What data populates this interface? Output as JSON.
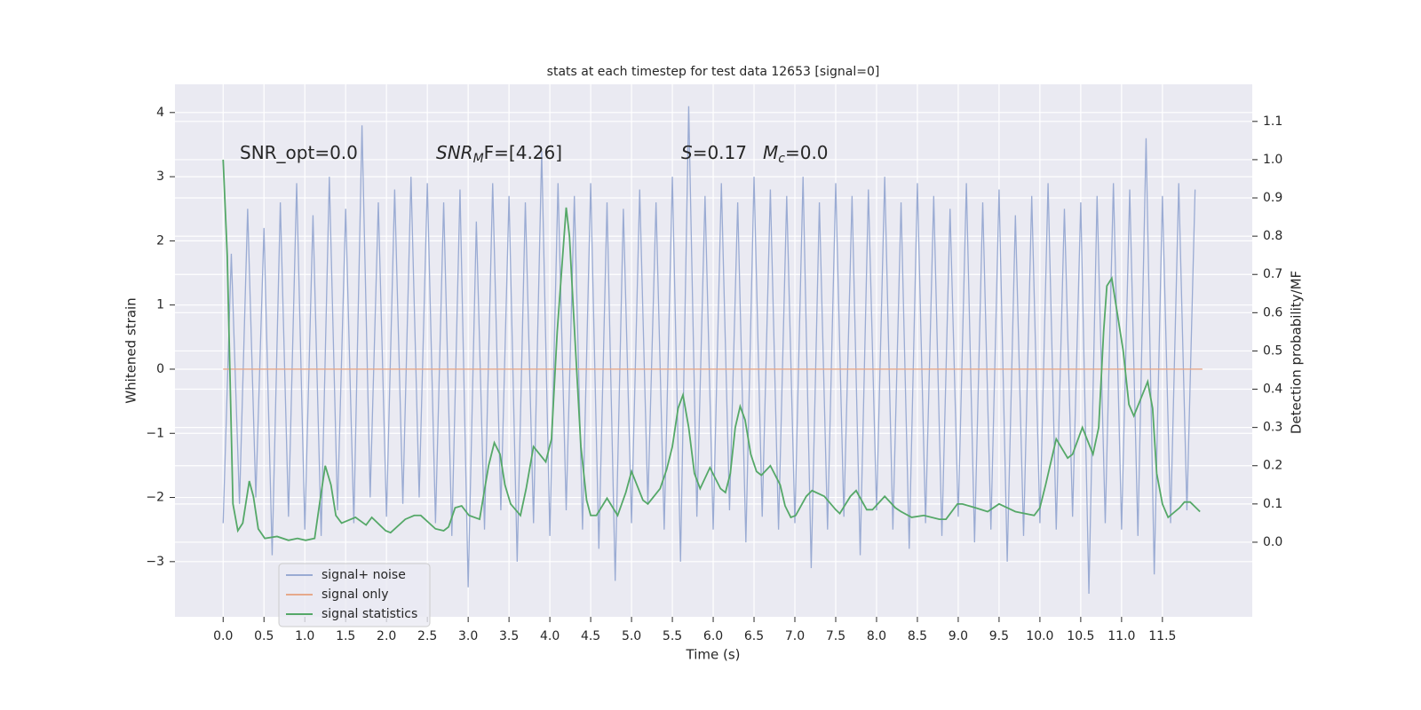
{
  "chart_data": {
    "type": "line",
    "title": "stats at each timestep for test data 12653 [signal=0]",
    "xlabel": "Time (s)",
    "ylabel": "Whitened strain",
    "y2label": "Detection probability/MF",
    "xlim": [
      -0.59,
      12.6
    ],
    "ylim": [
      -3.86,
      4.44
    ],
    "y2lim": [
      -0.195,
      1.197
    ],
    "xticks": [
      {
        "value": 0,
        "label": "0.0"
      },
      0.5,
      {
        "value": 1,
        "label": "1.0"
      },
      1.5,
      {
        "value": 2,
        "label": "2.0"
      },
      2.5,
      {
        "value": 3,
        "label": "3.0"
      },
      3.5,
      {
        "value": 4,
        "label": "4.0"
      },
      4.5,
      {
        "value": 5,
        "label": "5.0"
      },
      5.5,
      {
        "value": 6,
        "label": "6.0"
      },
      6.5,
      {
        "value": 7,
        "label": "7.0"
      },
      7.5,
      {
        "value": 8,
        "label": "8.0"
      },
      8.5,
      {
        "value": 9,
        "label": "9.0"
      },
      9.5,
      {
        "value": 10,
        "label": "10.0"
      },
      10.5,
      {
        "value": 11,
        "label": "11.0"
      },
      11.5
    ],
    "yticks": [
      {
        "value": -3,
        "label": "−3"
      },
      {
        "value": -2,
        "label": "−2"
      },
      {
        "value": -1,
        "label": "−1"
      },
      0,
      1,
      2,
      3,
      4
    ],
    "y2ticks": [
      {
        "value": 0,
        "label": "0.0"
      },
      0.1,
      0.2,
      0.3,
      0.4,
      0.5,
      0.6,
      0.7,
      0.8,
      0.9,
      {
        "value": 1,
        "label": "1.0"
      },
      1.1
    ],
    "grid": true,
    "legend": "lower left",
    "annotations": [
      [
        {
          "text": "SNR_opt=0.0",
          "style": "normal"
        }
      ],
      [
        {
          "text": "SNR",
          "style": "italic"
        },
        {
          "text": "M",
          "style": "italic-sub"
        },
        {
          "text": "F=[4.26]",
          "style": "normal"
        }
      ],
      [
        {
          "text": "S",
          "style": "italic"
        },
        {
          "text": "=0.17",
          "style": "normal"
        }
      ],
      [
        {
          "text": "M",
          "style": "italic"
        },
        {
          "text": "c",
          "style": "italic-sub"
        },
        {
          "text": "=0.0",
          "style": "normal"
        }
      ]
    ],
    "series": [
      {
        "name": "signal+ noise",
        "color": "#9aabd3",
        "axis": "y",
        "x": [
          0,
          0.1,
          0.2,
          0.3,
          0.4,
          0.5,
          0.6,
          0.7,
          0.8,
          0.9,
          1,
          1.1,
          1.2,
          1.3,
          1.4,
          1.5,
          1.6,
          1.7,
          1.8,
          1.9,
          2,
          2.1,
          2.2,
          2.3,
          2.4,
          2.5,
          2.6,
          2.7,
          2.8,
          2.9,
          3,
          3.1,
          3.2,
          3.3,
          3.4,
          3.5,
          3.6,
          3.7,
          3.8,
          3.9,
          4,
          4.1,
          4.2,
          4.3,
          4.4,
          4.5,
          4.6,
          4.7,
          4.8,
          4.9,
          5,
          5.1,
          5.2,
          5.3,
          5.4,
          5.5,
          5.6,
          5.7,
          5.8,
          5.9,
          6,
          6.1,
          6.2,
          6.3,
          6.4,
          6.5,
          6.6,
          6.7,
          6.8,
          6.9,
          7,
          7.1,
          7.2,
          7.3,
          7.4,
          7.5,
          7.6,
          7.7,
          7.8,
          7.9,
          8,
          8.1,
          8.2,
          8.3,
          8.4,
          8.5,
          8.6,
          8.7,
          8.8,
          8.9,
          9,
          9.1,
          9.2,
          9.3,
          9.4,
          9.5,
          9.6,
          9.7,
          9.8,
          9.9,
          10,
          10.1,
          10.2,
          10.3,
          10.4,
          10.5,
          10.6,
          10.7,
          10.8,
          10.9,
          11,
          11.1,
          11.2,
          11.3,
          11.4,
          11.5,
          11.6,
          11.7,
          11.8,
          11.9
        ],
        "values": [
          -2.4,
          1.8,
          -2.1,
          2.5,
          -2.0,
          2.2,
          -2.9,
          2.6,
          -2.3,
          2.9,
          -2.5,
          2.4,
          -2.6,
          3.0,
          -2.2,
          2.5,
          -2.4,
          3.8,
          -2.0,
          2.6,
          -2.3,
          2.8,
          -2.1,
          3.0,
          -2.0,
          2.9,
          -2.4,
          2.6,
          -2.6,
          2.8,
          -3.4,
          2.3,
          -2.5,
          2.9,
          -2.2,
          2.7,
          -3.0,
          2.6,
          -2.4,
          3.4,
          -2.6,
          2.9,
          -2.2,
          2.7,
          -2.5,
          2.9,
          -2.8,
          2.6,
          -3.3,
          2.5,
          -2.4,
          2.8,
          -2.1,
          2.6,
          -2.5,
          3.0,
          -3.0,
          4.1,
          -2.3,
          2.7,
          -2.5,
          2.9,
          -2.2,
          2.6,
          -2.7,
          3.0,
          -2.3,
          2.8,
          -2.5,
          2.7,
          -2.4,
          3.0,
          -3.1,
          2.6,
          -2.5,
          2.9,
          -2.3,
          2.7,
          -2.9,
          2.8,
          -2.2,
          3.0,
          -2.5,
          2.6,
          -2.8,
          2.9,
          -2.4,
          2.7,
          -2.6,
          2.5,
          -2.3,
          2.9,
          -2.7,
          2.6,
          -2.5,
          2.8,
          -3.0,
          2.4,
          -2.6,
          2.7,
          -2.4,
          2.9,
          -2.5,
          2.5,
          -2.3,
          2.6,
          -3.5,
          2.7,
          -2.4,
          2.9,
          -2.5,
          2.8,
          -2.6,
          3.6,
          -3.2,
          2.7,
          -2.4,
          2.9,
          -2.2,
          2.8
        ]
      },
      {
        "name": "signal only",
        "color": "#e6a98b",
        "axis": "y",
        "x": [
          0,
          11.99
        ],
        "values": [
          0,
          0
        ]
      },
      {
        "name": "signal statistics",
        "color": "#55a868",
        "axis": "y2",
        "x": [
          0,
          0.05,
          0.12,
          0.18,
          0.24,
          0.32,
          0.37,
          0.43,
          0.51,
          0.66,
          0.8,
          0.91,
          1.01,
          1.12,
          1.18,
          1.25,
          1.32,
          1.38,
          1.45,
          1.62,
          1.75,
          1.82,
          1.99,
          2.05,
          2.23,
          2.34,
          2.42,
          2.6,
          2.7,
          2.76,
          2.84,
          2.92,
          3.01,
          3.14,
          3.25,
          3.32,
          3.39,
          3.45,
          3.52,
          3.64,
          3.71,
          3.8,
          3.95,
          4.02,
          4.09,
          4.2,
          4.24,
          4.29,
          4.38,
          4.45,
          4.5,
          4.57,
          4.7,
          4.83,
          4.93,
          5,
          5.14,
          5.2,
          5.35,
          5.43,
          5.5,
          5.57,
          5.63,
          5.7,
          5.77,
          5.84,
          5.96,
          6.09,
          6.15,
          6.21,
          6.27,
          6.33,
          6.39,
          6.46,
          6.53,
          6.59,
          6.7,
          6.82,
          6.88,
          6.95,
          7.01,
          7.14,
          7.21,
          7.36,
          7.5,
          7.55,
          7.68,
          7.75,
          7.88,
          7.95,
          8.1,
          8.23,
          8.3,
          8.43,
          8.58,
          8.77,
          8.85,
          8.99,
          9.05,
          9.21,
          9.36,
          9.5,
          9.7,
          9.93,
          10,
          10.07,
          10.2,
          10.34,
          10.4,
          10.52,
          10.65,
          10.72,
          10.78,
          10.82,
          10.88,
          11.02,
          11.09,
          11.15,
          11.32,
          11.38,
          11.43,
          11.5,
          11.57,
          11.71,
          11.77,
          11.84,
          11.96
        ],
        "values": [
          1.0,
          0.75,
          0.1,
          0.03,
          0.05,
          0.16,
          0.12,
          0.035,
          0.01,
          0.015,
          0.005,
          0.01,
          0.005,
          0.01,
          0.1,
          0.2,
          0.15,
          0.07,
          0.05,
          0.065,
          0.045,
          0.065,
          0.03,
          0.025,
          0.06,
          0.07,
          0.07,
          0.035,
          0.03,
          0.04,
          0.09,
          0.095,
          0.07,
          0.06,
          0.2,
          0.26,
          0.23,
          0.15,
          0.1,
          0.07,
          0.14,
          0.25,
          0.21,
          0.27,
          0.55,
          0.875,
          0.8,
          0.6,
          0.25,
          0.11,
          0.07,
          0.07,
          0.115,
          0.07,
          0.13,
          0.185,
          0.11,
          0.1,
          0.14,
          0.19,
          0.25,
          0.35,
          0.385,
          0.3,
          0.18,
          0.14,
          0.195,
          0.14,
          0.13,
          0.18,
          0.3,
          0.355,
          0.32,
          0.23,
          0.185,
          0.175,
          0.2,
          0.15,
          0.095,
          0.065,
          0.07,
          0.12,
          0.135,
          0.12,
          0.085,
          0.075,
          0.12,
          0.135,
          0.085,
          0.085,
          0.12,
          0.09,
          0.08,
          0.065,
          0.07,
          0.06,
          0.06,
          0.1,
          0.1,
          0.09,
          0.08,
          0.1,
          0.08,
          0.07,
          0.09,
          0.15,
          0.27,
          0.22,
          0.23,
          0.3,
          0.23,
          0.3,
          0.55,
          0.67,
          0.69,
          0.5,
          0.36,
          0.33,
          0.42,
          0.35,
          0.18,
          0.1,
          0.065,
          0.09,
          0.105,
          0.105,
          0.08
        ]
      }
    ]
  }
}
